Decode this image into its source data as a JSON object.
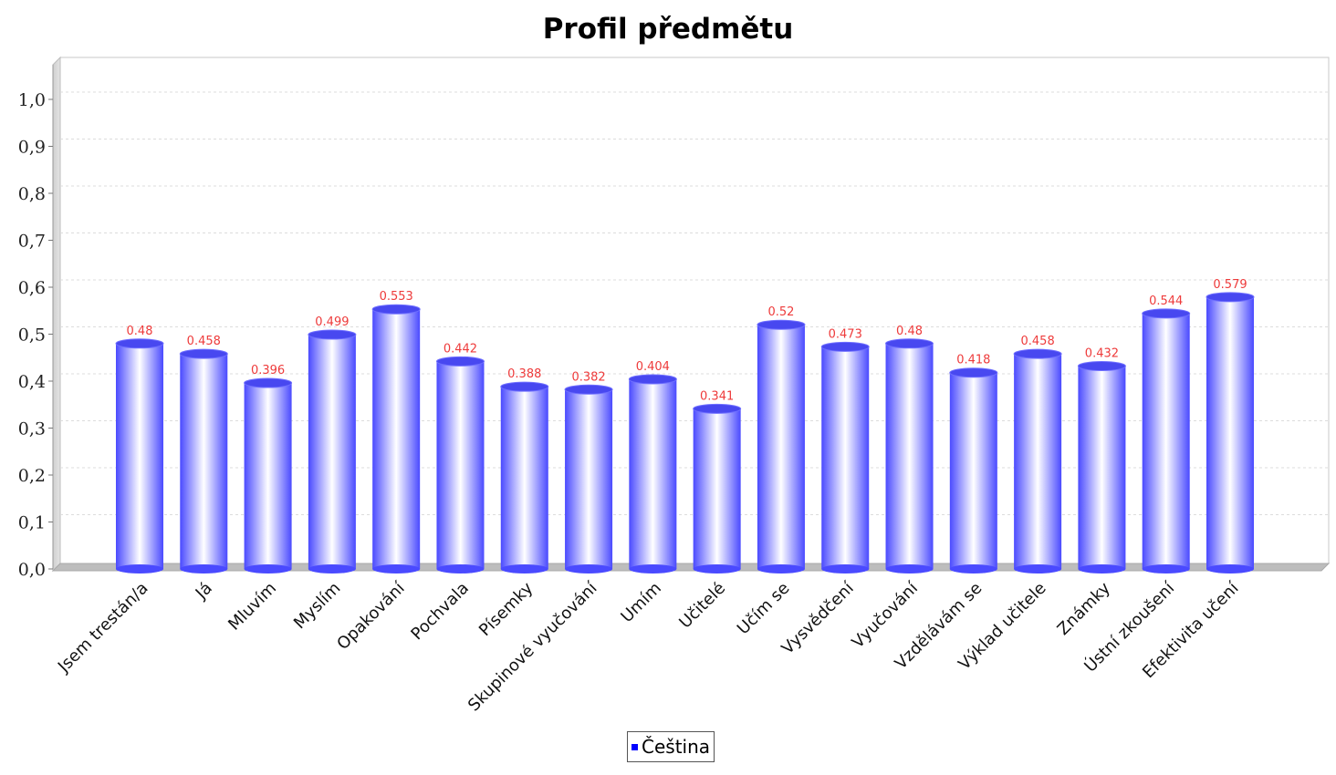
{
  "chart_data": {
    "type": "bar",
    "title": "Profil předmětu",
    "categories": [
      "Jsem trestán/a",
      "Já",
      "Mluvím",
      "Myslím",
      "Opakování",
      "Pochvala",
      "Písemky",
      "Skupinové vyučování",
      "Umím",
      "Učitelé",
      "Učím se",
      "Vysvědčení",
      "Vyučování",
      "Vzdělávám se",
      "Výklad učitele",
      "Známky",
      "Ústní zkoušení",
      "Efektivita učení"
    ],
    "series": [
      {
        "name": "Čeština",
        "values": [
          0.48,
          0.458,
          0.396,
          0.499,
          0.553,
          0.442,
          0.388,
          0.382,
          0.404,
          0.341,
          0.52,
          0.473,
          0.48,
          0.418,
          0.458,
          0.432,
          0.544,
          0.579
        ],
        "color": "#4f4fff"
      }
    ],
    "data_labels": [
      "0.48",
      "0.458",
      "0.396",
      "0.499",
      "0.553",
      "0.442",
      "0.388",
      "0.382",
      "0.404",
      "0.341",
      "0.52",
      "0.473",
      "0.48",
      "0.418",
      "0.458",
      "0.432",
      "0.544",
      "0.579"
    ],
    "y_ticks": [
      "0,0",
      "0,1",
      "0,2",
      "0,3",
      "0,4",
      "0,5",
      "0,6",
      "0,7",
      "0,8",
      "0,9",
      "1,0"
    ],
    "ylim": [
      0,
      1.0
    ],
    "grid": true,
    "legend_position": "bottom-center",
    "label_color": "#ee3b3b"
  }
}
